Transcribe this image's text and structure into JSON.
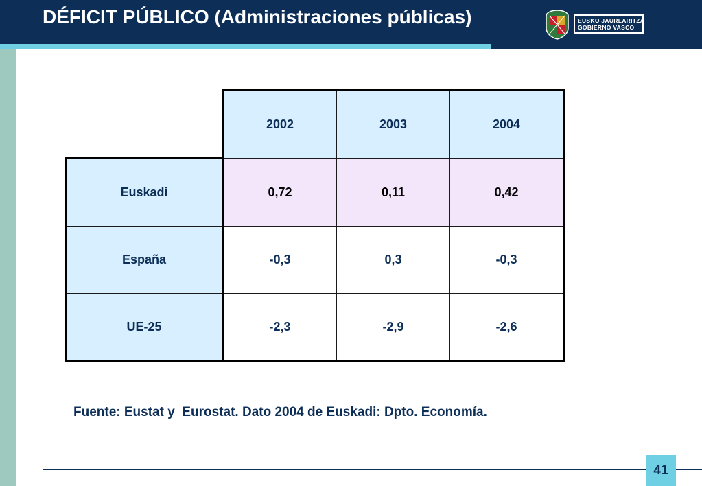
{
  "title": "DÉFICIT PÚBLICO (Administraciones públicas)",
  "logo": {
    "line1": "EUSKO JAURLARITZA",
    "line2": "GOBIERNO VASCO"
  },
  "table": {
    "columns": [
      "2002",
      "2003",
      "2004"
    ],
    "rows": [
      {
        "label": "Euskadi",
        "values": [
          "0,72",
          "0,11",
          "0,42"
        ]
      },
      {
        "label": "España",
        "values": [
          "-0,3",
          "0,3",
          "-0,3"
        ]
      },
      {
        "label": "UE-25",
        "values": [
          "-2,3",
          "-2,9",
          "-2,6"
        ]
      }
    ]
  },
  "source": "Fuente: Eustat y  Eurostat. Dato 2004 de Euskadi: Dpto. Economía.",
  "page_number": "41",
  "colors": {
    "header_bg": "#0d2f57",
    "accent": "#6fd0e3",
    "side_stripe": "#9ec9be",
    "cell_blue": "#d7efff",
    "cell_lavender": "#f3e6fb"
  }
}
